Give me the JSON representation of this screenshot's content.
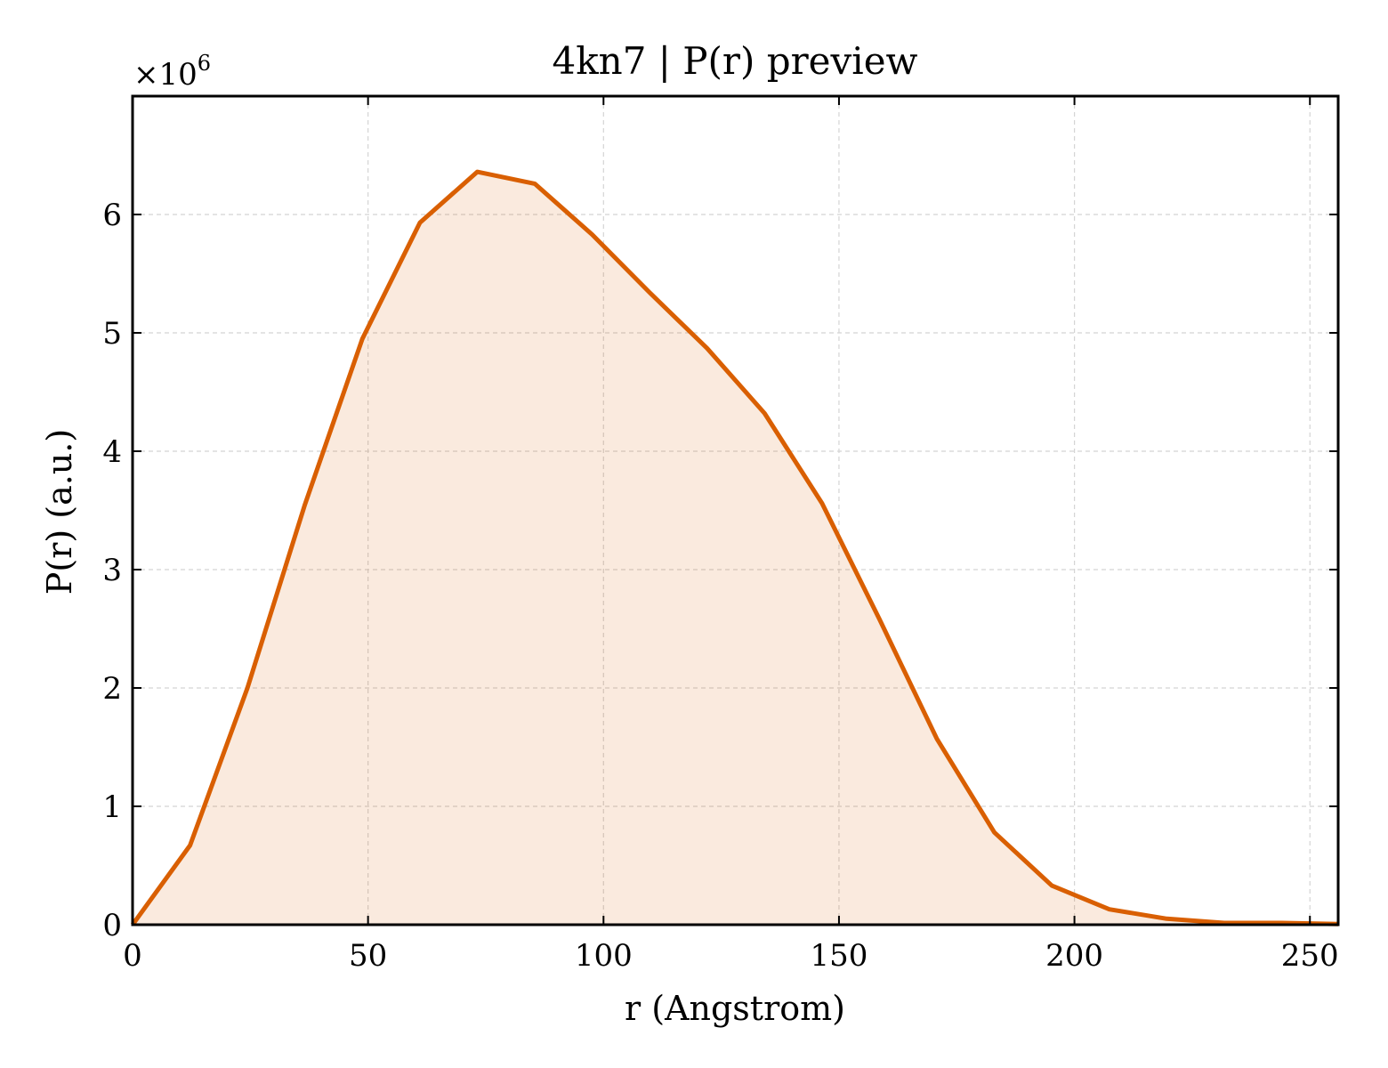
{
  "chart_data": {
    "type": "area",
    "title": "4kn7 | P(r) preview",
    "xlabel": "r (Angstrom)",
    "ylabel": "P(r) (a.u.)",
    "y_multiplier_label": "×10",
    "y_multiplier_exponent": "6",
    "xlim": [
      0,
      256
    ],
    "ylim": [
      0,
      7000000
    ],
    "x_ticks": [
      0,
      50,
      100,
      150,
      200,
      250
    ],
    "x_tick_labels": [
      "0",
      "50",
      "100",
      "150",
      "200",
      "250"
    ],
    "y_ticks": [
      0,
      1000000,
      2000000,
      3000000,
      4000000,
      5000000,
      6000000
    ],
    "y_tick_labels": [
      "0",
      "1",
      "2",
      "3",
      "4",
      "5",
      "6"
    ],
    "grid": true,
    "colors": {
      "line": "#d95f02",
      "fill": "#d95f02",
      "fill_opacity": 0.13
    },
    "series": [
      {
        "x": [
          0,
          12.2,
          24.4,
          36.6,
          48.8,
          61.0,
          73.2,
          85.4,
          97.6,
          109.8,
          122.0,
          134.2,
          146.4,
          158.6,
          170.8,
          183.0,
          195.2,
          207.4,
          219.6,
          231.8,
          244.0,
          256.0
        ],
        "y": [
          0,
          670000,
          2000000,
          3550000,
          4950000,
          5930000,
          6360000,
          6260000,
          5830000,
          5340000,
          4870000,
          4320000,
          3560000,
          2580000,
          1570000,
          780000,
          330000,
          130000,
          50000,
          15000,
          15000,
          5000
        ]
      }
    ]
  }
}
